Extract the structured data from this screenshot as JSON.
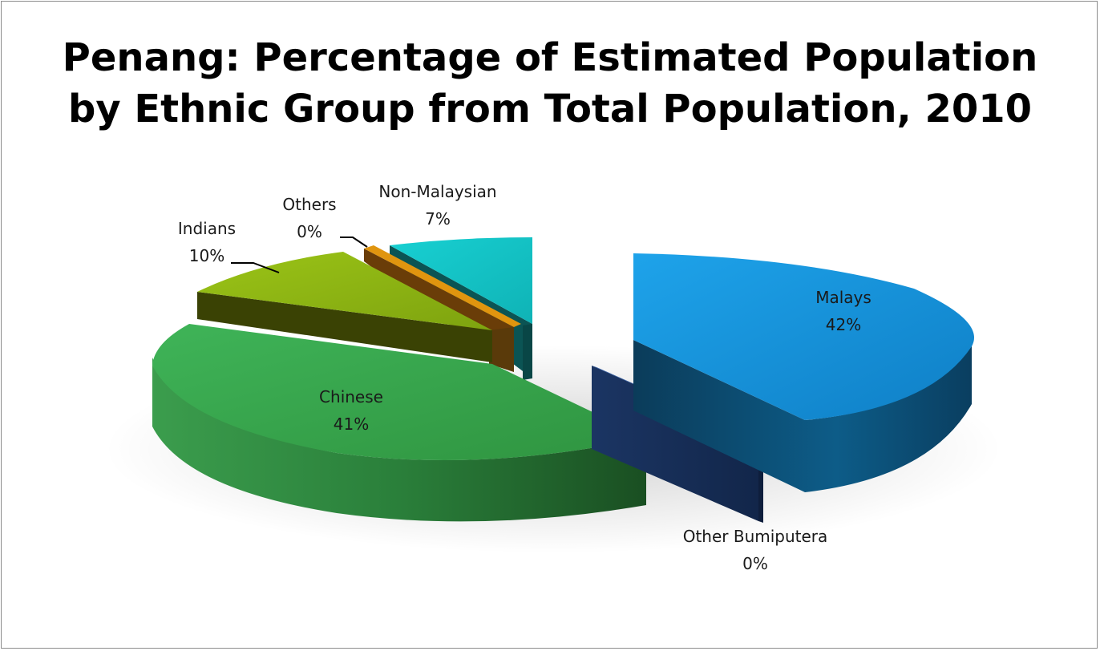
{
  "chart_data": {
    "type": "pie",
    "title_line1": "Penang: Percentage of Estimated Population",
    "title_line2": "by Ethnic Group from Total Population, 2010",
    "slices": [
      {
        "label": "Malays",
        "value_label": "42%",
        "value": 42,
        "color": "#1793dc"
      },
      {
        "label": "Other Bumiputera",
        "value_label": "0%",
        "value": 0.4,
        "color": "#1f3a6e"
      },
      {
        "label": "Chinese",
        "value_label": "41%",
        "value": 41,
        "color": "#35a64a"
      },
      {
        "label": "Indians",
        "value_label": "10%",
        "value": 10,
        "color": "#8ab313"
      },
      {
        "label": "Others",
        "value_label": "0%",
        "value": 0.4,
        "color": "#d9890f"
      },
      {
        "label": "Non-Malaysian",
        "value_label": "7%",
        "value": 7,
        "color": "#12c7c9"
      }
    ]
  }
}
